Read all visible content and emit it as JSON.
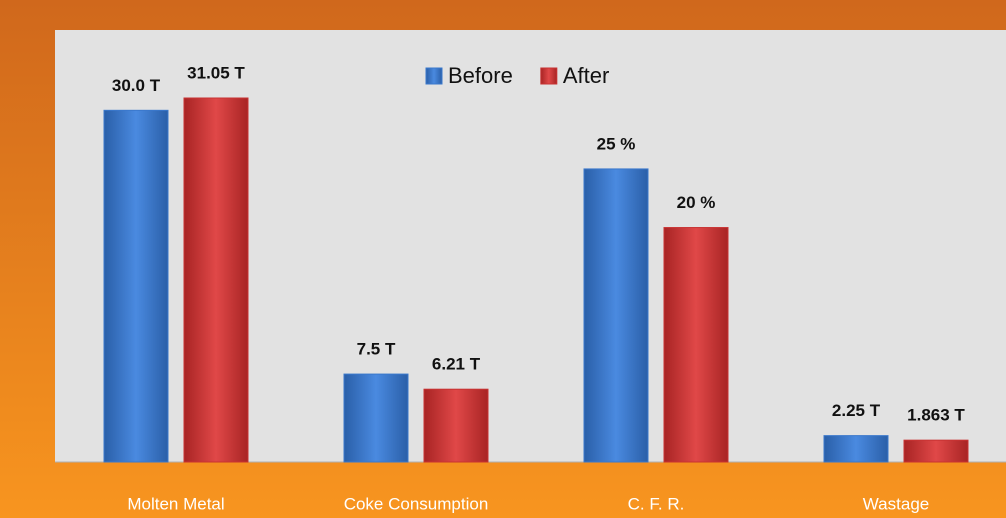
{
  "chart_data": {
    "type": "bar",
    "categories": [
      "Molten Metal",
      "Coke Consumption",
      "C. F. R.",
      "Wastage"
    ],
    "series": [
      {
        "name": "Before",
        "color": "#3a78cc",
        "values": [
          30.0,
          7.5,
          25,
          2.25
        ],
        "value_labels": [
          "30.0 T",
          "7.5 T",
          "25 %",
          "2.25 T"
        ]
      },
      {
        "name": "After",
        "color": "#c83232",
        "values": [
          31.05,
          6.21,
          20,
          1.863
        ],
        "value_labels": [
          "31.05 T",
          "6.21 T",
          "20 %",
          "1.863 T"
        ]
      }
    ],
    "legend": "top"
  }
}
